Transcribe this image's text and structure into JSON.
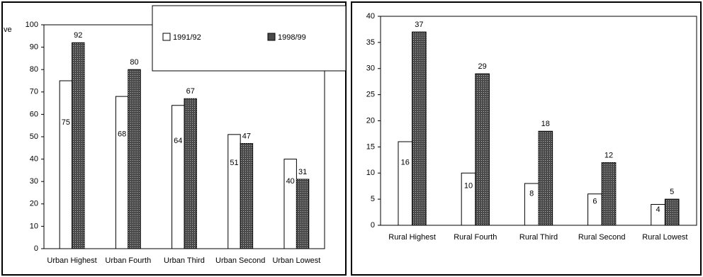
{
  "chart_data": [
    {
      "type": "bar",
      "y_label": "ve",
      "categories": [
        "Urban Highest",
        "Urban Fourth",
        "Urban Third",
        "Urban Second",
        "Urban Lowest"
      ],
      "series": [
        {
          "name": "1991/92",
          "color": "#ffffff",
          "values": [
            75,
            68,
            64,
            51,
            40
          ]
        },
        {
          "name": "1998/99",
          "color": "#4a4a4a",
          "values": [
            92,
            80,
            67,
            47,
            31
          ]
        }
      ],
      "ylim": [
        0,
        100
      ],
      "yticks": [
        0,
        10,
        20,
        30,
        40,
        50,
        60,
        70,
        80,
        90,
        100
      ],
      "legend": "top-right"
    },
    {
      "type": "bar",
      "categories": [
        "Rural Highest",
        "Rural Fourth",
        "Rural Third",
        "Rural Second",
        "Rural Lowest"
      ],
      "series": [
        {
          "name": "1991/92",
          "color": "#ffffff",
          "values": [
            16,
            10,
            8,
            6,
            4
          ]
        },
        {
          "name": "1998/99",
          "color": "#4a4a4a",
          "values": [
            37,
            29,
            18,
            12,
            5
          ]
        }
      ],
      "ylim": [
        0,
        40
      ],
      "yticks": [
        0,
        5,
        10,
        15,
        20,
        25,
        30,
        35,
        40
      ]
    }
  ]
}
